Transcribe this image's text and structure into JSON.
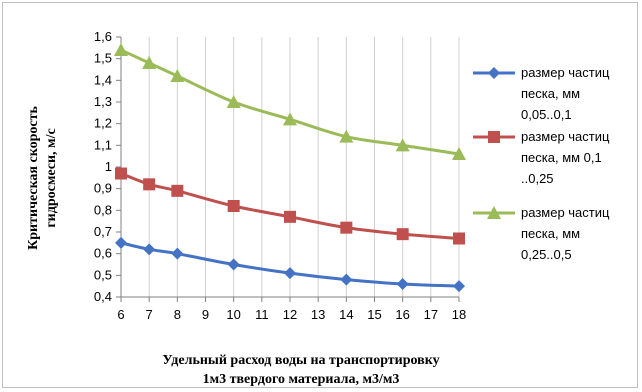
{
  "chart_data": {
    "type": "line",
    "x": [
      6,
      7,
      8,
      10,
      12,
      14,
      16,
      18
    ],
    "x_ticks": [
      "6",
      "7",
      "8",
      "9",
      "10",
      "11",
      "12",
      "13",
      "14",
      "15",
      "16",
      "17",
      "18"
    ],
    "y_ticks": [
      "0,4",
      "0,5",
      "0,6",
      "0,7",
      "0,8",
      "0,9",
      "1",
      "1,1",
      "1,2",
      "1,3",
      "1,4",
      "1,5",
      "1,6"
    ],
    "xlim": [
      6,
      18
    ],
    "ylim": [
      0.4,
      1.6
    ],
    "grid": "vertical",
    "legend_position": "right",
    "xlabel_lines": [
      "Удельный расход воды на транспортировку",
      "1м3 твердого материала,  м3/м3"
    ],
    "ylabel_lines": [
      "Критическая  скорость",
      "гидросмеси, м/с"
    ],
    "series": [
      {
        "name": "размер частиц песка, мм 0,05..0,1",
        "legend_lines": [
          "размер частиц",
          "песка, мм",
          "0,05..0,1"
        ],
        "color": "#4472c4",
        "marker": "diamond",
        "values": [
          0.65,
          0.62,
          0.6,
          0.55,
          0.51,
          0.48,
          0.46,
          0.45
        ]
      },
      {
        "name": "размер частиц песка, мм 0,1 ..0,25",
        "legend_lines": [
          "размер частиц",
          "песка, мм 0,1",
          "..0,25"
        ],
        "color": "#c0504d",
        "marker": "square",
        "values": [
          0.97,
          0.92,
          0.89,
          0.82,
          0.77,
          0.72,
          0.69,
          0.67
        ]
      },
      {
        "name": "размер частиц песка, мм 0,25..0,5",
        "legend_lines": [
          "размер частиц",
          "песка, мм",
          "0,25..0,5"
        ],
        "color": "#9bbb59",
        "marker": "triangle",
        "values": [
          1.54,
          1.48,
          1.42,
          1.3,
          1.22,
          1.14,
          1.1,
          1.06
        ]
      }
    ]
  }
}
